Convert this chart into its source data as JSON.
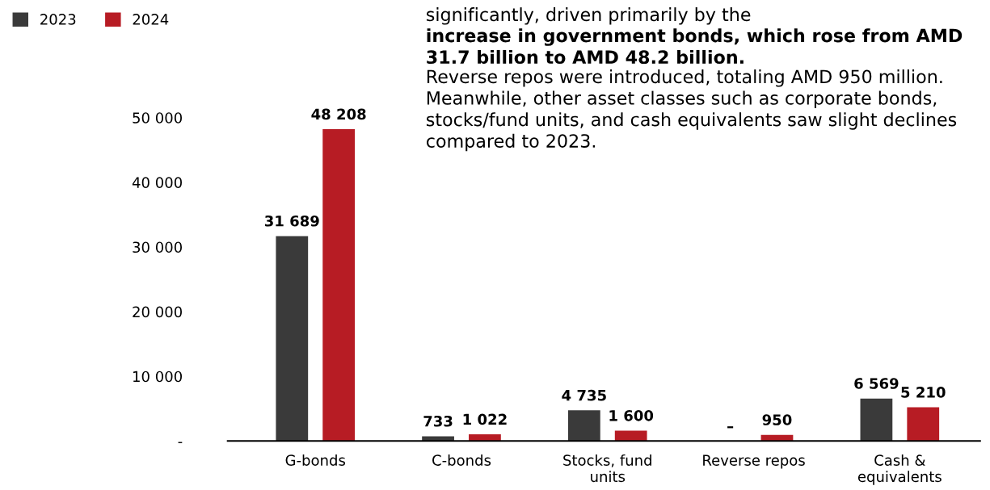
{
  "chart_data": {
    "type": "bar",
    "categories": [
      "G-bonds",
      "C-bonds",
      "Stocks, fund\nunits",
      "Reverse repos",
      "Cash &\nequivalents"
    ],
    "series": [
      {
        "name": "2023",
        "color": "#3a3a3a",
        "values": [
          31689,
          733,
          4735,
          null,
          6569
        ],
        "value_labels": [
          "31 689",
          "733",
          "4 735",
          "–",
          "6 569"
        ]
      },
      {
        "name": "2024",
        "color": "#b71c24",
        "values": [
          48208,
          1022,
          1600,
          950,
          5210
        ],
        "value_labels": [
          "48 208",
          "1 022",
          "1 600",
          "950",
          "5 210"
        ]
      }
    ],
    "ylim": [
      0,
      50000
    ],
    "yticks": [
      {
        "value": 0,
        "label": "-"
      },
      {
        "value": 10000,
        "label": "10 000"
      },
      {
        "value": 20000,
        "label": "20 000"
      },
      {
        "value": 30000,
        "label": "30 000"
      },
      {
        "value": 40000,
        "label": "40 000"
      },
      {
        "value": 50000,
        "label": "50 000"
      }
    ],
    "legend": "top left",
    "grid": false,
    "annotations": [
      "significantly, driven primarily by the",
      "increase in government bonds, which rose from AMD 31.7 billion to AMD 48.2 billion.",
      "Reverse repos were introduced, totaling AMD 950 million. Meanwhile, other asset classes such as corporate bonds, stocks/fund units, and cash equivalents saw slight declines compared to 2023."
    ]
  }
}
